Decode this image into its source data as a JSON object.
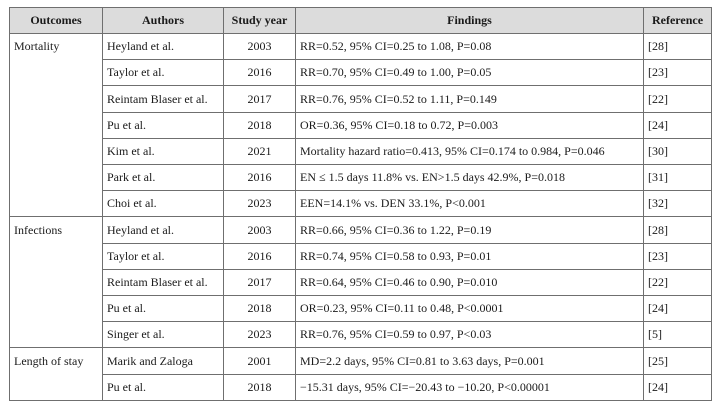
{
  "table": {
    "headers": [
      "Outcomes",
      "Authors",
      "Study year",
      "Findings",
      "Reference"
    ],
    "rows": [
      {
        "outcome": "Mortality",
        "authors": "Heyland et al.",
        "year": "2003",
        "findings": "RR=0.52, 95% CI=0.25 to 1.08, P=0.08",
        "reference": "[28]"
      },
      {
        "outcome": "",
        "authors": "Taylor et al.",
        "year": "2016",
        "findings": "RR=0.70, 95% CI=0.49 to 1.00, P=0.05",
        "reference": "[23]"
      },
      {
        "outcome": "",
        "authors": "Reintam Blaser et al.",
        "year": "2017",
        "findings": "RR=0.76, 95% CI=0.52 to 1.11, P=0.149",
        "reference": "[22]"
      },
      {
        "outcome": "",
        "authors": "Pu et al.",
        "year": "2018",
        "findings": "OR=0.36, 95% CI=0.18 to 0.72, P=0.003",
        "reference": "[24]"
      },
      {
        "outcome": "",
        "authors": "Kim et al.",
        "year": "2021",
        "findings": "Mortality hazard ratio=0.413, 95% CI=0.174 to 0.984, P=0.046",
        "reference": "[30]"
      },
      {
        "outcome": "",
        "authors": "Park et al.",
        "year": "2016",
        "findings": "EN ≤ 1.5 days 11.8% vs. EN>1.5 days 42.9%, P=0.018",
        "reference": "[31]"
      },
      {
        "outcome": "",
        "authors": "Choi et al.",
        "year": "2023",
        "findings": "EEN=14.1% vs. DEN 33.1%, P<0.001",
        "reference": "[32]"
      },
      {
        "outcome": "Infections",
        "authors": "Heyland et al.",
        "year": "2003",
        "findings": "RR=0.66, 95% CI=0.36 to 1.22, P=0.19",
        "reference": "[28]"
      },
      {
        "outcome": "",
        "authors": "Taylor et al.",
        "year": "2016",
        "findings": "RR=0.74, 95% CI=0.58 to 0.93, P=0.01",
        "reference": "[23]"
      },
      {
        "outcome": "",
        "authors": "Reintam Blaser et al.",
        "year": "2017",
        "findings": "RR=0.64, 95% CI=0.46 to 0.90, P=0.010",
        "reference": "[22]"
      },
      {
        "outcome": "",
        "authors": "Pu et al.",
        "year": "2018",
        "findings": "OR=0.23, 95% CI=0.11 to 0.48, P<0.0001",
        "reference": "[24]"
      },
      {
        "outcome": "",
        "authors": "Singer et al.",
        "year": "2023",
        "findings": "RR=0.76, 95% CI=0.59 to 0.97, P<0.03",
        "reference": "[5]"
      },
      {
        "outcome": "Length of stay",
        "authors": "Marik and Zaloga",
        "year": "2001",
        "findings": "MD=2.2 days, 95% CI=0.81 to 3.63 days, P=0.001",
        "reference": "[25]"
      },
      {
        "outcome": "",
        "authors": "Pu et al.",
        "year": "2018",
        "findings": "−15.31 days, 95% CI=−20.43 to −10.20, P<0.00001",
        "reference": "[24]"
      }
    ]
  }
}
